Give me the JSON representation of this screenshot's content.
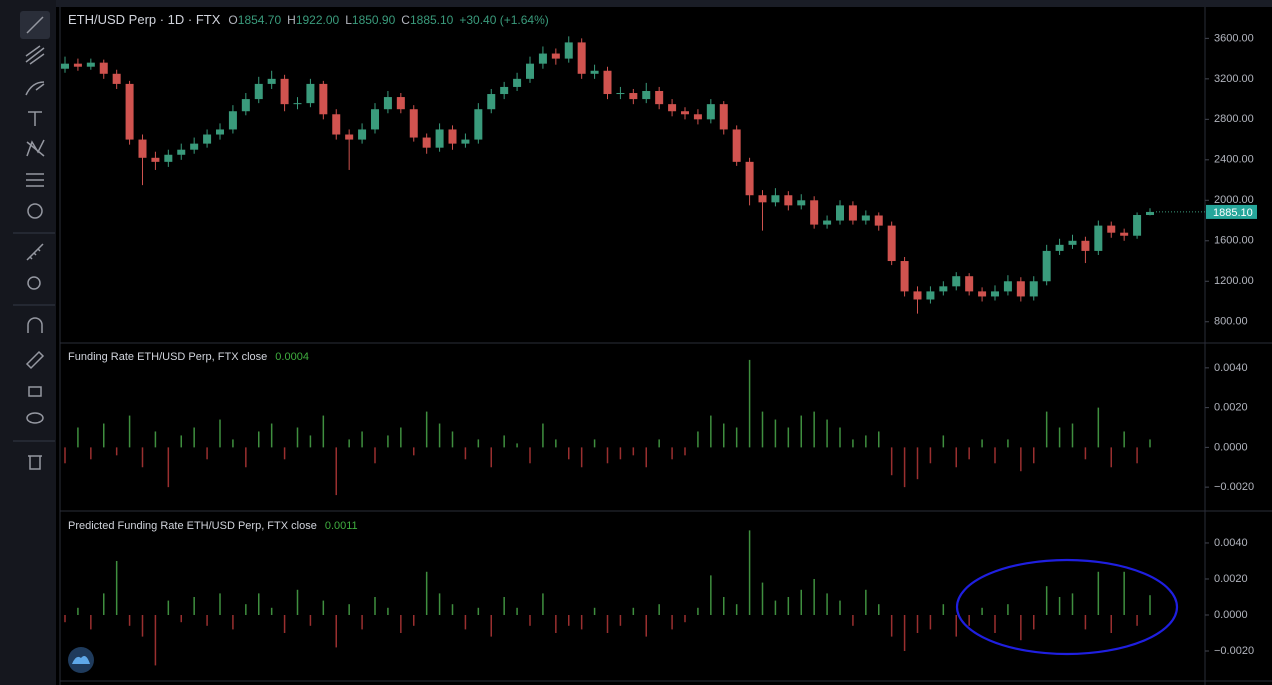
{
  "chart_data": [
    {
      "type": "candlestick",
      "title": "ETH/USD Perp · 1D · FTX",
      "ohlc_header": [
        {
          "label": "O",
          "text": "1854.70"
        },
        {
          "label": "H",
          "text": "1922.00"
        },
        {
          "label": "L",
          "text": "1850.90"
        },
        {
          "label": "C",
          "text": "1885.10"
        }
      ],
      "change": "+30.40 (+1.64%)",
      "last_price": {
        "value": 1885.1,
        "label": "1885.10"
      },
      "up_color": "#3a9b7c",
      "down_color": "#d0534f",
      "open": [
        3300,
        3350,
        3320,
        3360,
        3250,
        3150,
        2600,
        2420,
        2380,
        2450,
        2500,
        2560,
        2650,
        2700,
        2880,
        3000,
        3150,
        3200,
        2950,
        2960,
        3150,
        2850,
        2650,
        2600,
        2700,
        2900,
        3020,
        2900,
        2620,
        2520,
        2700,
        2560,
        2600,
        2900,
        3050,
        3120,
        3200,
        3350,
        3450,
        3400,
        3560,
        3250,
        3280,
        3050,
        3060,
        3000,
        3080,
        2950,
        2880,
        2850,
        2800,
        2950,
        2700,
        2380,
        2050,
        1980,
        2050,
        1950,
        2000,
        1760,
        1800,
        1950,
        1800,
        1850,
        1750,
        1400,
        1100,
        1020,
        1100,
        1150,
        1250,
        1100,
        1050,
        1100,
        1200,
        1050,
        1200,
        1500,
        1560,
        1600,
        1500,
        1750,
        1680,
        1650,
        1854.7
      ],
      "high": [
        3420,
        3400,
        3400,
        3390,
        3290,
        3180,
        2650,
        2480,
        2500,
        2560,
        2620,
        2700,
        2760,
        2940,
        3060,
        3220,
        3280,
        3240,
        3020,
        3200,
        3180,
        2900,
        2700,
        2760,
        2960,
        3080,
        3060,
        2940,
        2660,
        2760,
        2740,
        2660,
        2960,
        3100,
        3170,
        3260,
        3420,
        3520,
        3500,
        3620,
        3600,
        3340,
        3320,
        3120,
        3100,
        3160,
        3120,
        3000,
        2920,
        2900,
        3000,
        2980,
        2740,
        2420,
        2100,
        2120,
        2090,
        2060,
        2040,
        1850,
        2000,
        1990,
        1900,
        1880,
        1790,
        1440,
        1150,
        1150,
        1200,
        1290,
        1280,
        1140,
        1160,
        1260,
        1240,
        1250,
        1560,
        1620,
        1660,
        1640,
        1800,
        1790,
        1720,
        1880,
        1922
      ],
      "low": [
        3260,
        3280,
        3290,
        3200,
        3100,
        2550,
        2150,
        2300,
        2330,
        2400,
        2460,
        2520,
        2600,
        2660,
        2840,
        2960,
        3100,
        2880,
        2900,
        2920,
        2800,
        2600,
        2300,
        2560,
        2660,
        2860,
        2860,
        2580,
        2460,
        2480,
        2500,
        2520,
        2560,
        2860,
        3000,
        3080,
        3160,
        3300,
        3340,
        3360,
        3200,
        3200,
        3000,
        3000,
        2950,
        2960,
        2900,
        2830,
        2800,
        2750,
        2760,
        2650,
        2340,
        1950,
        1700,
        1940,
        1900,
        1910,
        1720,
        1720,
        1760,
        1760,
        1760,
        1700,
        1360,
        1050,
        880,
        980,
        1060,
        1110,
        1060,
        1000,
        1010,
        1060,
        1000,
        1010,
        1160,
        1460,
        1520,
        1380,
        1460,
        1630,
        1600,
        1620,
        1850.9
      ],
      "close": [
        3350,
        3320,
        3360,
        3250,
        3150,
        2600,
        2420,
        2380,
        2450,
        2500,
        2560,
        2650,
        2700,
        2880,
        3000,
        3150,
        3200,
        2950,
        2960,
        3150,
        2850,
        2650,
        2600,
        2700,
        2900,
        3020,
        2900,
        2620,
        2520,
        2700,
        2560,
        2600,
        2900,
        3050,
        3120,
        3200,
        3350,
        3450,
        3400,
        3560,
        3250,
        3280,
        3050,
        3060,
        3000,
        3080,
        2950,
        2880,
        2850,
        2800,
        2950,
        2700,
        2380,
        2050,
        1980,
        2050,
        1950,
        2000,
        1760,
        1800,
        1950,
        1800,
        1850,
        1750,
        1400,
        1100,
        1020,
        1100,
        1150,
        1250,
        1100,
        1050,
        1100,
        1200,
        1050,
        1200,
        1500,
        1560,
        1600,
        1500,
        1750,
        1680,
        1650,
        1854.7,
        1885.1
      ],
      "ylim": [
        600,
        3900
      ],
      "yticks": [
        {
          "value": 800,
          "label": "800.00"
        },
        {
          "value": 1200,
          "label": "1200.00"
        },
        {
          "value": 1600,
          "label": "1600.00"
        },
        {
          "value": 2000,
          "label": "2000.00"
        },
        {
          "value": 2400,
          "label": "2400.00"
        },
        {
          "value": 2800,
          "label": "2800.00"
        },
        {
          "value": 3200,
          "label": "3200.00"
        },
        {
          "value": 3600,
          "label": "3600.00"
        }
      ],
      "grid": false
    },
    {
      "type": "bar",
      "title": "Funding Rate ETH/USD Perp, FTX close",
      "current": "0.0004",
      "positive_color": "#3f8f3f",
      "negative_color": "#9a2f2f",
      "values": [
        -0.0008,
        0.001,
        -0.0006,
        0.0012,
        -0.0004,
        0.0016,
        -0.001,
        0.0008,
        -0.002,
        0.0006,
        0.001,
        -0.0006,
        0.0014,
        0.0004,
        -0.001,
        0.0008,
        0.0012,
        -0.0006,
        0.001,
        0.0006,
        0.0016,
        -0.0024,
        0.0004,
        0.0008,
        -0.0008,
        0.0006,
        0.001,
        -0.0004,
        0.0018,
        0.0012,
        0.0008,
        -0.0006,
        0.0004,
        -0.001,
        0.0006,
        0.0002,
        -0.0008,
        0.0012,
        0.0004,
        -0.0006,
        -0.001,
        0.0004,
        -0.0008,
        -0.0006,
        -0.0004,
        -0.001,
        0.0004,
        -0.0006,
        -0.0004,
        0.0008,
        0.0016,
        0.0012,
        0.001,
        0.0044,
        0.0018,
        0.0014,
        0.001,
        0.0016,
        0.0018,
        0.0014,
        0.001,
        0.0004,
        0.0006,
        0.0008,
        -0.0014,
        -0.002,
        -0.0016,
        -0.0008,
        0.0006,
        -0.001,
        -0.0006,
        0.0004,
        -0.0008,
        0.0004,
        -0.0012,
        -0.0008,
        0.0018,
        0.001,
        0.0012,
        -0.0006,
        0.002,
        -0.001,
        0.0008,
        -0.0008,
        0.0004
      ],
      "ylim": [
        -0.00315,
        0.0052
      ],
      "yticks": [
        {
          "value": -0.002,
          "label": "−0.0020"
        },
        {
          "value": 0,
          "label": "0.0000"
        },
        {
          "value": 0.002,
          "label": "0.0020"
        },
        {
          "value": 0.004,
          "label": "0.0040"
        }
      ],
      "grid": false
    },
    {
      "type": "bar",
      "title": "Predicted Funding Rate ETH/USD Perp, FTX close",
      "current": "0.0011",
      "positive_color": "#3f8f3f",
      "negative_color": "#9a2f2f",
      "values": [
        -0.0004,
        0.0004,
        -0.0008,
        0.0012,
        0.003,
        -0.0006,
        -0.0012,
        -0.0028,
        0.0008,
        -0.0004,
        0.001,
        -0.0006,
        0.0012,
        -0.0008,
        0.0006,
        0.0012,
        0.0004,
        -0.001,
        0.0014,
        -0.0006,
        0.0008,
        -0.0018,
        0.0006,
        -0.0008,
        0.001,
        0.0004,
        -0.001,
        -0.0006,
        0.0024,
        0.0012,
        0.0006,
        -0.0008,
        0.0004,
        -0.0012,
        0.001,
        0.0004,
        -0.0006,
        0.0012,
        -0.001,
        -0.0006,
        -0.0008,
        0.0004,
        -0.001,
        -0.0006,
        0.0004,
        -0.0012,
        0.0006,
        -0.0008,
        -0.0004,
        0.0004,
        0.0022,
        0.001,
        0.0006,
        0.0047,
        0.0018,
        0.0008,
        0.001,
        0.0014,
        0.002,
        0.0012,
        0.0008,
        -0.0006,
        0.0014,
        0.0006,
        -0.0012,
        -0.002,
        -0.001,
        -0.0008,
        0.0006,
        -0.0012,
        -0.0006,
        0.0004,
        -0.001,
        0.0006,
        -0.0014,
        -0.0008,
        0.0016,
        0.001,
        0.0012,
        -0.0008,
        0.0024,
        -0.001,
        0.0024,
        -0.0006,
        0.0011
      ],
      "ylim": [
        -0.00361,
        0.00572
      ],
      "yticks": [
        {
          "value": -0.002,
          "label": "−0.0020"
        },
        {
          "value": 0,
          "label": "0.0000"
        },
        {
          "value": 0.002,
          "label": "0.0020"
        },
        {
          "value": 0.004,
          "label": "0.0040"
        }
      ],
      "grid": false
    }
  ]
}
